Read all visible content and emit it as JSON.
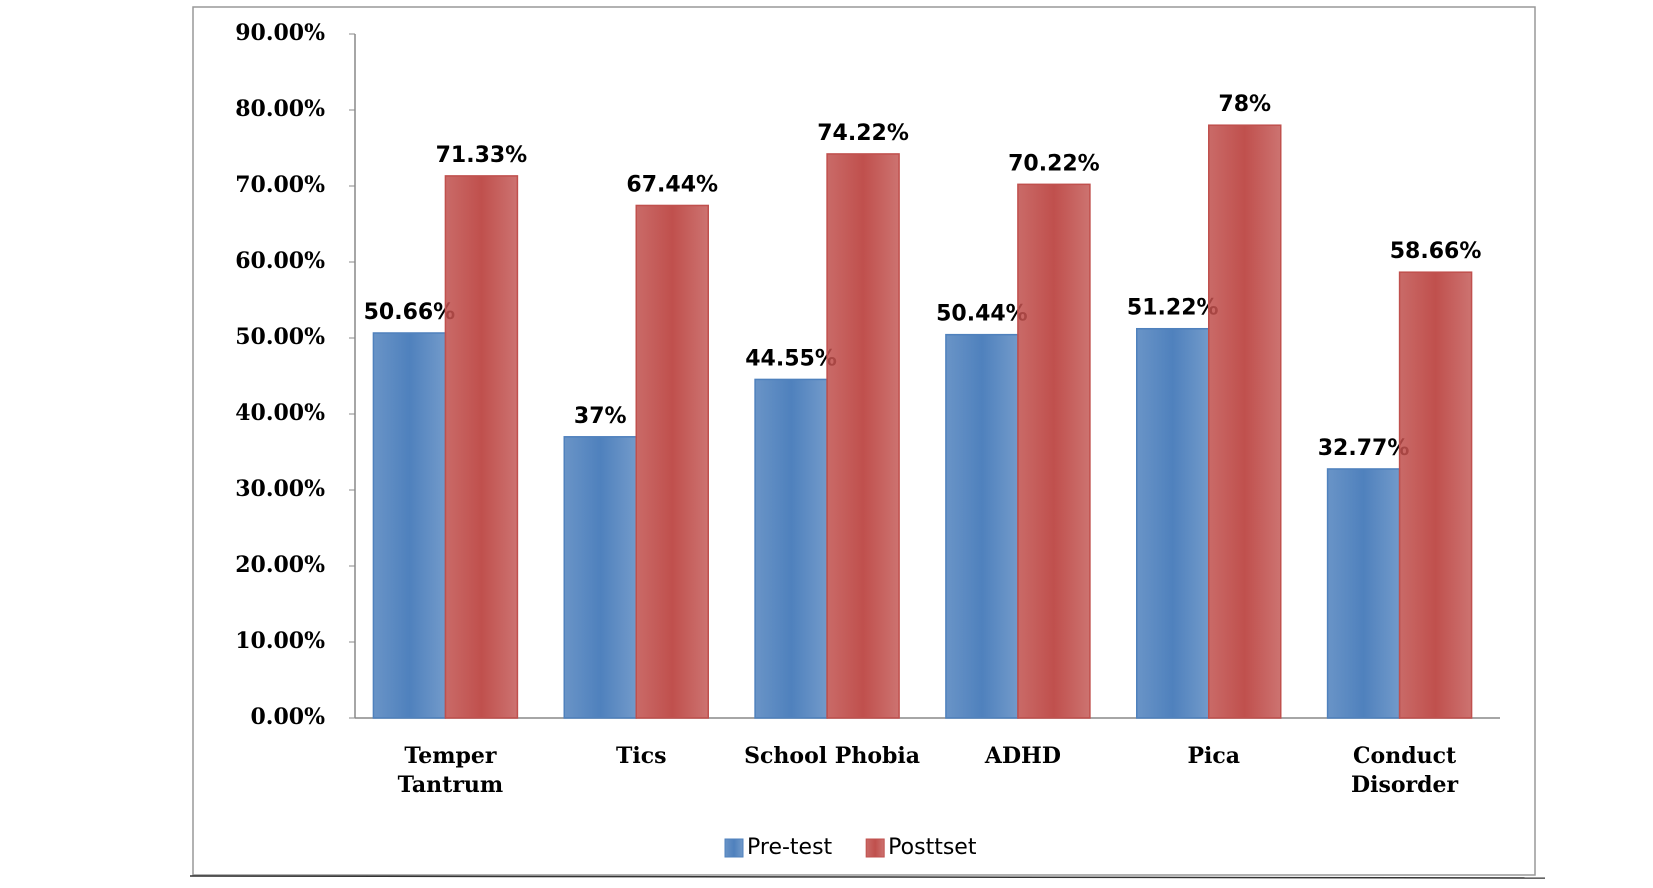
{
  "chart_data": {
    "type": "bar",
    "categories": [
      "Temper\nTantrum",
      "Tics",
      "School Phobia",
      "ADHD",
      "Pica",
      "Conduct\nDisorder"
    ],
    "series": [
      {
        "name": "Pre-test",
        "color": "#4f81bd",
        "values": [
          50.66,
          37,
          44.55,
          50.44,
          51.22,
          32.77
        ],
        "value_labels": [
          "50.66%",
          "37%",
          "44.55%",
          "50.44%",
          "51.22%",
          "32.77%"
        ]
      },
      {
        "name": "Posttset",
        "color": "#c0504d",
        "values": [
          71.33,
          67.44,
          74.22,
          70.22,
          78,
          58.66
        ],
        "value_labels": [
          "71.33%",
          "67.44%",
          "74.22%",
          "70.22%",
          "78%",
          "58.66%"
        ]
      }
    ],
    "ylim": [
      0,
      90
    ],
    "yticks": [
      {
        "value": 0,
        "label": "0.00%"
      },
      {
        "value": 10,
        "label": "10.00%"
      },
      {
        "value": 20,
        "label": "20.00%"
      },
      {
        "value": 30,
        "label": "30.00%"
      },
      {
        "value": 40,
        "label": "40.00%"
      },
      {
        "value": 50,
        "label": "50.00%"
      },
      {
        "value": 60,
        "label": "60.00%"
      },
      {
        "value": 70,
        "label": "70.00%"
      },
      {
        "value": 80,
        "label": "80.00%"
      },
      {
        "value": 90,
        "label": "90.00%"
      }
    ],
    "legend": "bottom"
  }
}
